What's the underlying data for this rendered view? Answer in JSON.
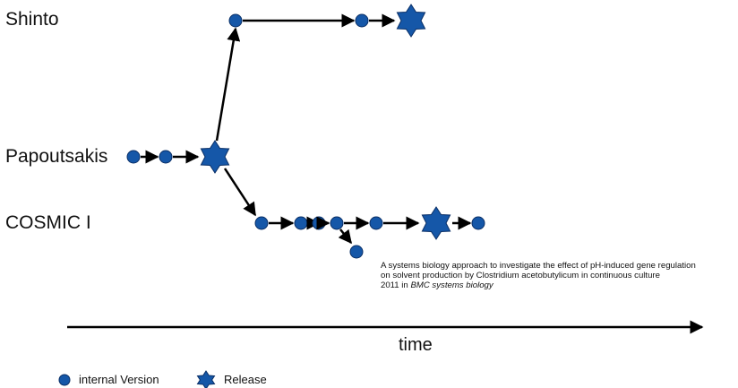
{
  "lanes": {
    "shinto": "Shinto",
    "papoutsakis": "Papoutsakis",
    "cosmic": "COSMIC I"
  },
  "reference": {
    "line1": "A systems biology approach to investigate the effect of pH-induced gene regulation",
    "line2": "on solvent production by Clostridium acetobutylicum in continuous culture",
    "line3_prefix": "2011 in ",
    "journal": "BMC systems biology"
  },
  "axis": {
    "label": "time"
  },
  "legend": {
    "internal": "internal Version",
    "release": "Release"
  },
  "colors": {
    "node_fill": "#1557a8",
    "node_stroke": "#0a2f66",
    "arrow": "#000000"
  }
}
